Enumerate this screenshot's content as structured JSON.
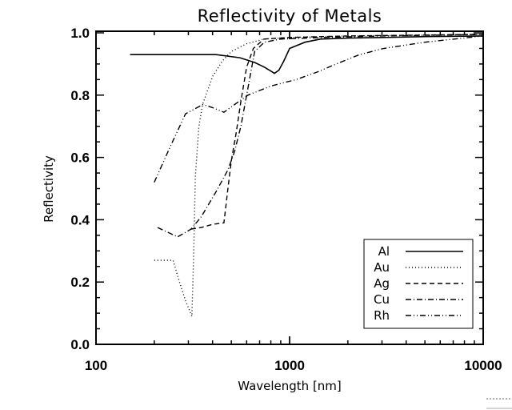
{
  "chart_data": {
    "type": "line",
    "title": "Reflectivity of Metals",
    "xlabel": "Wavelength [nm]",
    "ylabel": "Reflectivity",
    "xscale": "log",
    "xlim": [
      100,
      10000
    ],
    "ylim": [
      0.0,
      1.0
    ],
    "x_tick_labels": [
      "100",
      "1000",
      "10000"
    ],
    "x_ticks": [
      100,
      1000,
      10000
    ],
    "y_tick_labels": [
      "0.0",
      "0.2",
      "0.4",
      "0.6",
      "0.8",
      "1.0"
    ],
    "y_ticks": [
      0.0,
      0.2,
      0.4,
      0.6,
      0.8,
      1.0
    ],
    "grid": false,
    "legend_position": "bottom-right",
    "series": [
      {
        "name": "Al",
        "linestyle": "solid",
        "x": [
          150,
          250,
          417,
          554,
          660,
          740,
          810,
          835,
          880,
          935,
          1000,
          1200,
          1440,
          2000,
          3000,
          5000,
          10000
        ],
        "y": [
          0.93,
          0.93,
          0.93,
          0.92,
          0.905,
          0.89,
          0.875,
          0.87,
          0.88,
          0.91,
          0.95,
          0.97,
          0.98,
          0.983,
          0.985,
          0.988,
          0.99
        ]
      },
      {
        "name": "Au",
        "linestyle": "dotted",
        "x": [
          200,
          250,
          270,
          290,
          313,
          320,
          326,
          340,
          355,
          400,
          450,
          500,
          600,
          737,
          1000,
          2000,
          10000
        ],
        "y": [
          0.27,
          0.27,
          0.2,
          0.14,
          0.09,
          0.3,
          0.54,
          0.7,
          0.77,
          0.86,
          0.91,
          0.94,
          0.965,
          0.98,
          0.985,
          0.99,
          0.995
        ]
      },
      {
        "name": "Ag",
        "linestyle": "dashed",
        "x": [
          310,
          350,
          400,
          458,
          480,
          500,
          530,
          560,
          600,
          650,
          737,
          1000,
          2000,
          10000
        ],
        "y": [
          0.37,
          0.375,
          0.385,
          0.39,
          0.5,
          0.59,
          0.68,
          0.78,
          0.89,
          0.95,
          0.98,
          0.985,
          0.99,
          0.995
        ]
      },
      {
        "name": "Cu",
        "linestyle": "dashdot",
        "x": [
          208,
          264,
          310,
          350,
          417,
          480,
          520,
          560,
          600,
          660,
          740,
          900,
          1500,
          3000,
          10000
        ],
        "y": [
          0.375,
          0.345,
          0.37,
          0.41,
          0.49,
          0.56,
          0.62,
          0.7,
          0.8,
          0.94,
          0.97,
          0.98,
          0.985,
          0.99,
          0.995
        ]
      },
      {
        "name": "Rh",
        "linestyle": "dashdotdot",
        "x": [
          200,
          240,
          290,
          357,
          400,
          458,
          520,
          610,
          700,
          810,
          1080,
          1400,
          1740,
          2300,
          3060,
          5000,
          10000
        ],
        "y": [
          0.52,
          0.63,
          0.74,
          0.77,
          0.76,
          0.745,
          0.77,
          0.8,
          0.815,
          0.83,
          0.85,
          0.875,
          0.9,
          0.93,
          0.95,
          0.97,
          0.99
        ]
      }
    ]
  }
}
